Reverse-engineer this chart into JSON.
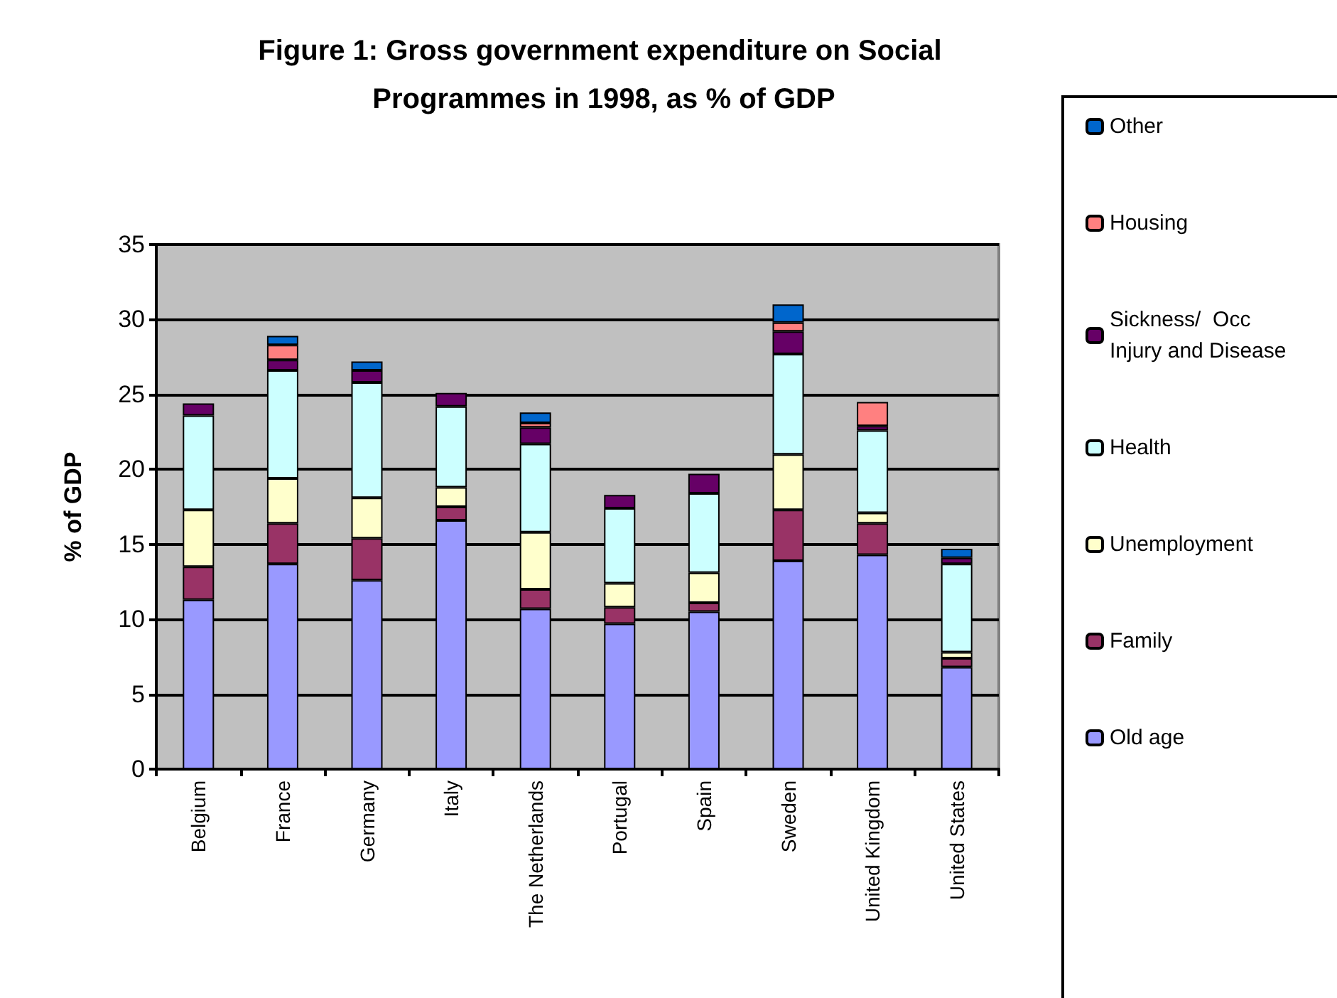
{
  "chart_data": {
    "type": "bar",
    "title": "Figure 1: Gross government expenditure on Social Programmes in 1998, as % of GDP",
    "ylabel": "% of GDP",
    "categories": [
      "Belgium",
      "France",
      "Germany",
      "Italy",
      "The Netherlands",
      "Portugal",
      "Spain",
      "Sweden",
      "United Kingdom",
      "United States"
    ],
    "stacked": true,
    "ylim": [
      0,
      35
    ],
    "yticks": [
      0,
      5,
      10,
      15,
      20,
      25,
      30,
      35
    ],
    "grid": "y",
    "legend": "right",
    "series": [
      {
        "name": "Old age",
        "color": "#9999ff",
        "values": [
          11.3,
          13.7,
          12.6,
          16.6,
          10.7,
          9.7,
          10.5,
          13.9,
          14.3,
          6.8
        ]
      },
      {
        "name": "Family",
        "color": "#993366",
        "values": [
          2.2,
          2.7,
          2.8,
          0.9,
          1.3,
          1.1,
          0.6,
          3.4,
          2.1,
          0.6
        ]
      },
      {
        "name": "Unemployment",
        "color": "#ffffcc",
        "values": [
          3.8,
          3.0,
          2.7,
          1.3,
          3.8,
          1.6,
          2.0,
          3.7,
          0.7,
          0.4
        ]
      },
      {
        "name": "Health",
        "color": "#ccffff",
        "values": [
          6.3,
          7.2,
          7.7,
          5.4,
          5.9,
          5.0,
          5.3,
          6.7,
          5.5,
          5.9
        ]
      },
      {
        "name": "Sickness/  Occ Injury and Disease",
        "color": "#660066",
        "values": [
          0.8,
          0.7,
          0.8,
          0.9,
          1.1,
          0.9,
          1.3,
          1.5,
          0.3,
          0.4
        ]
      },
      {
        "name": "Housing",
        "color": "#ff8080",
        "values": [
          null,
          1.0,
          null,
          null,
          0.3,
          null,
          null,
          0.6,
          1.6,
          null
        ]
      },
      {
        "name": "Other",
        "color": "#0066cc",
        "values": [
          null,
          0.6,
          0.6,
          null,
          0.7,
          null,
          null,
          1.2,
          null,
          0.6
        ]
      }
    ]
  }
}
